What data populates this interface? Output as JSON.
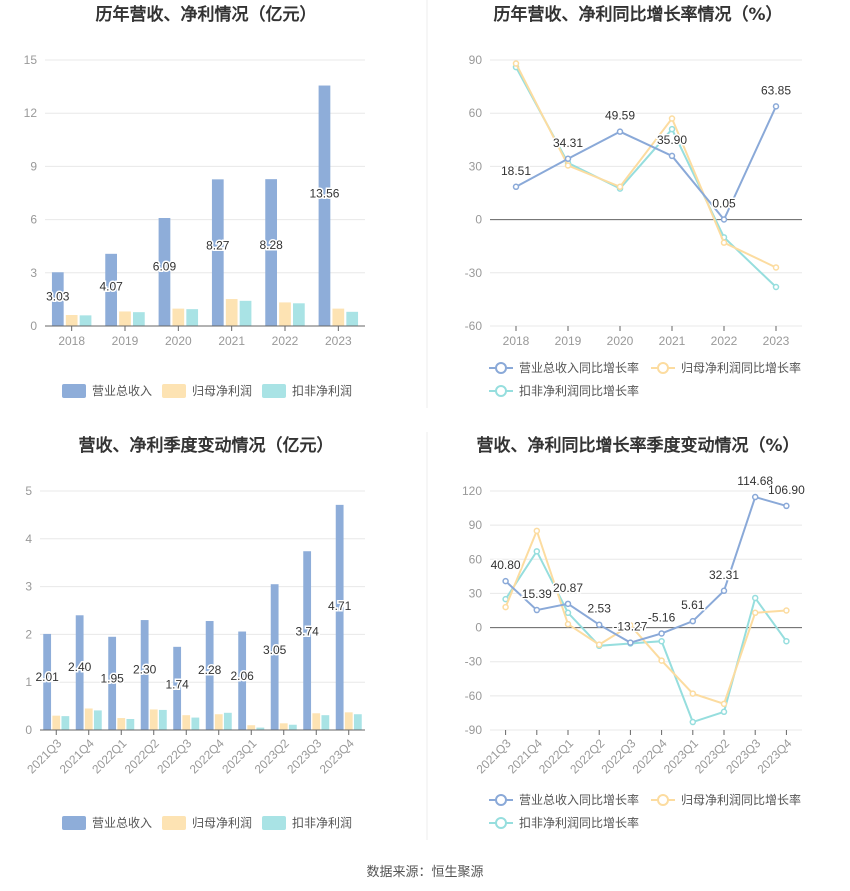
{
  "colors": {
    "revenue": "#8eadd9",
    "net_profit": "#fde3b3",
    "deducted_profit": "#a9e3e5",
    "revenue_line": "#8aa9d8",
    "net_profit_line": "#fcdca0",
    "deducted_profit_line": "#96dede",
    "grid": "#e8e8e8",
    "axis": "#666666"
  },
  "source": "数据来源：恒生聚源",
  "chart_data": [
    {
      "type": "bar",
      "title": "历年营收、净利情况（亿元）",
      "categories": [
        "2018",
        "2019",
        "2020",
        "2021",
        "2022",
        "2023"
      ],
      "ylim": [
        0,
        15
      ],
      "yticks": [
        "0",
        "3",
        "6",
        "9",
        "12",
        "15"
      ],
      "legend_position": "bottom",
      "series": [
        {
          "name": "营业总收入",
          "values": [
            3.03,
            4.07,
            6.09,
            8.27,
            8.28,
            13.56
          ],
          "labels": [
            "3.03",
            "4.07",
            "6.09",
            "8.27",
            "8.28",
            "13.56"
          ]
        },
        {
          "name": "归母净利润",
          "values": [
            0.62,
            0.82,
            0.98,
            1.52,
            1.33,
            0.98
          ]
        },
        {
          "name": "扣非净利润",
          "values": [
            0.6,
            0.78,
            0.95,
            1.42,
            1.28,
            0.8
          ]
        }
      ]
    },
    {
      "type": "line",
      "title": "历年营收、净利同比增长率情况（%）",
      "categories": [
        "2018",
        "2019",
        "2020",
        "2021",
        "2022",
        "2023"
      ],
      "ylim": [
        -60,
        90
      ],
      "yticks": [
        "-60",
        "-30",
        "0",
        "30",
        "60",
        "90"
      ],
      "legend_position": "bottom",
      "series": [
        {
          "name": "营业总收入同比增长率",
          "values": [
            18.51,
            34.31,
            49.59,
            35.9,
            0.05,
            63.85
          ],
          "labels": [
            "18.51",
            "34.31",
            "49.59",
            "35.90",
            "0.05",
            "63.85"
          ]
        },
        {
          "name": "归母净利润同比增长率",
          "values": [
            88,
            30.5,
            18.5,
            57,
            -13,
            -27
          ]
        },
        {
          "name": "扣非净利润同比增长率",
          "values": [
            86,
            32,
            17.5,
            51,
            -10,
            -38
          ]
        }
      ]
    },
    {
      "type": "bar",
      "title": "营收、净利季度变动情况（亿元）",
      "categories": [
        "2021Q3",
        "2021Q4",
        "2022Q1",
        "2022Q2",
        "2022Q3",
        "2022Q4",
        "2023Q1",
        "2023Q2",
        "2023Q3",
        "2023Q4"
      ],
      "ylim": [
        0,
        5
      ],
      "yticks": [
        "0",
        "1",
        "2",
        "3",
        "4",
        "5"
      ],
      "legend_position": "bottom",
      "series": [
        {
          "name": "营业总收入",
          "values": [
            2.01,
            2.4,
            1.95,
            2.3,
            1.74,
            2.28,
            2.06,
            3.05,
            3.74,
            4.71
          ],
          "labels": [
            "2.01",
            "2.40",
            "1.95",
            "2.30",
            "1.74",
            "2.28",
            "2.06",
            "3.05",
            "3.74",
            "4.71"
          ]
        },
        {
          "name": "归母净利润",
          "values": [
            0.3,
            0.45,
            0.25,
            0.43,
            0.31,
            0.33,
            0.1,
            0.14,
            0.35,
            0.37
          ]
        },
        {
          "name": "扣非净利润",
          "values": [
            0.29,
            0.41,
            0.23,
            0.42,
            0.26,
            0.36,
            0.05,
            0.11,
            0.31,
            0.33
          ]
        }
      ]
    },
    {
      "type": "line",
      "title": "营收、净利同比增长率季度变动情况（%）",
      "categories": [
        "2021Q3",
        "2021Q4",
        "2022Q1",
        "2022Q2",
        "2022Q3",
        "2022Q4",
        "2023Q1",
        "2023Q2",
        "2023Q3",
        "2023Q4"
      ],
      "ylim": [
        -90,
        120
      ],
      "yticks": [
        "-90",
        "-60",
        "-30",
        "0",
        "30",
        "60",
        "90",
        "120"
      ],
      "legend_position": "bottom",
      "series": [
        {
          "name": "营业总收入同比增长率",
          "values": [
            40.8,
            15.39,
            20.87,
            2.53,
            -13.27,
            -5.16,
            5.61,
            32.31,
            114.68,
            106.9
          ],
          "labels": [
            "40.80",
            "15.39",
            "20.87",
            "2.53",
            "-13.27",
            "-5.16",
            "5.61",
            "32.31",
            "114.68",
            "106.90"
          ]
        },
        {
          "name": "归母净利润同比增长率",
          "values": [
            18,
            85,
            3,
            -15,
            2,
            -29,
            -58,
            -67,
            13,
            15
          ]
        },
        {
          "name": "扣非净利润同比增长率",
          "values": [
            25,
            67,
            13,
            -16,
            -14,
            -12,
            -83,
            -74,
            26,
            -12
          ]
        }
      ]
    }
  ]
}
